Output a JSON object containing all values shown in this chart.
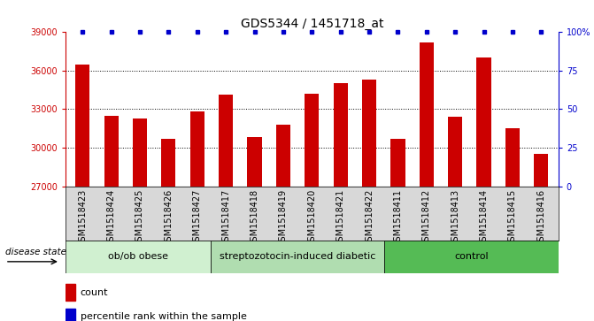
{
  "title": "GDS5344 / 1451718_at",
  "samples": [
    "GSM1518423",
    "GSM1518424",
    "GSM1518425",
    "GSM1518426",
    "GSM1518427",
    "GSM1518417",
    "GSM1518418",
    "GSM1518419",
    "GSM1518420",
    "GSM1518421",
    "GSM1518422",
    "GSM1518411",
    "GSM1518412",
    "GSM1518413",
    "GSM1518414",
    "GSM1518415",
    "GSM1518416"
  ],
  "counts": [
    36500,
    32500,
    32300,
    30700,
    32800,
    34100,
    30800,
    31800,
    34200,
    35000,
    35300,
    30700,
    38200,
    32400,
    37000,
    31500,
    29500
  ],
  "groups": [
    {
      "label": "ob/ob obese",
      "start": 0,
      "end": 5,
      "color": "#d0f0d0"
    },
    {
      "label": "streptozotocin-induced diabetic",
      "start": 5,
      "end": 11,
      "color": "#b0ddb0"
    },
    {
      "label": "control",
      "start": 11,
      "end": 17,
      "color": "#55bb55"
    }
  ],
  "bar_color": "#cc0000",
  "dot_color": "#0000cc",
  "plot_bg": "#ffffff",
  "xtick_bg": "#d8d8d8",
  "ylim_left": [
    27000,
    39000
  ],
  "yticks_left": [
    27000,
    30000,
    33000,
    36000,
    39000
  ],
  "ylim_right": [
    0,
    100
  ],
  "yticks_right": [
    0,
    25,
    50,
    75,
    100
  ],
  "ylabel_left_color": "#cc0000",
  "ylabel_right_color": "#0000cc",
  "legend_count_label": "count",
  "legend_percentile_label": "percentile rank within the sample",
  "disease_state_label": "disease state",
  "title_fontsize": 10,
  "tick_fontsize": 7,
  "group_label_fontsize": 8,
  "bar_width": 0.5
}
